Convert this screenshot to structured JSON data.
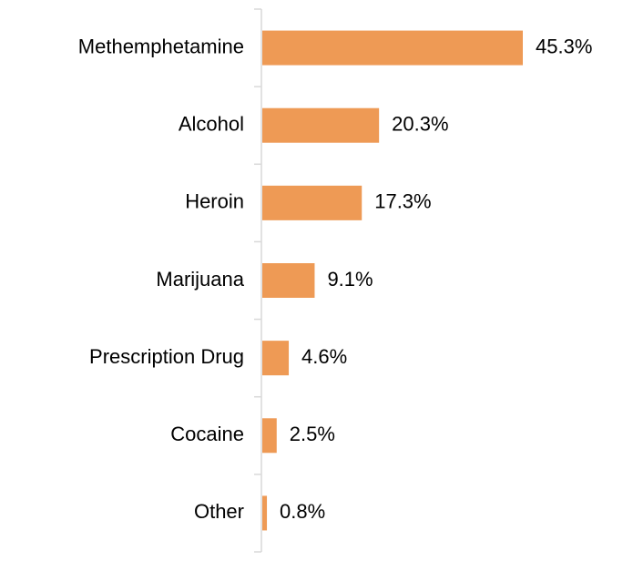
{
  "chart_data": {
    "type": "barh",
    "categories": [
      "Methemphetamine",
      "Alcohol",
      "Heroin",
      "Marijuana",
      "Prescription Drug",
      "Cocaine",
      "Other"
    ],
    "values": [
      45.3,
      20.3,
      17.3,
      9.1,
      4.6,
      2.5,
      0.8
    ],
    "value_labels": [
      "45.3%",
      "20.3%",
      "17.3%",
      "9.1%",
      "4.6%",
      "2.5%",
      "0.8%"
    ],
    "color": "#ee9a55"
  }
}
